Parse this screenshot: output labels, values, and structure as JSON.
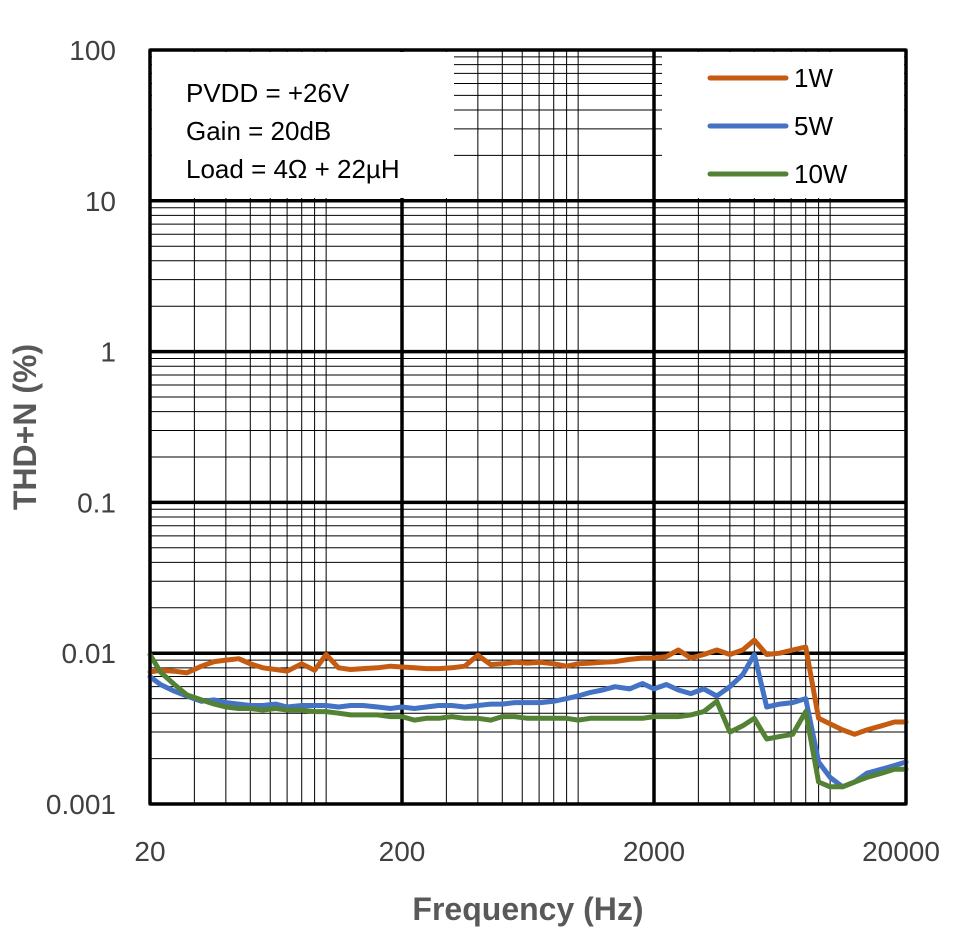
{
  "chart_data": {
    "type": "line",
    "xlabel": "Frequency (Hz)",
    "ylabel": "THD+N (%)",
    "x_scale": "log",
    "y_scale": "log",
    "xlim": [
      20,
      20000
    ],
    "ylim": [
      0.001,
      100
    ],
    "x_ticks": [
      "20",
      "200",
      "2000",
      "20000"
    ],
    "y_ticks": [
      "100",
      "10",
      "1",
      "0.1",
      "0.01",
      "0.001"
    ],
    "grid": true,
    "legend_position": "top-right",
    "annotations": [
      "PVDD = +26V",
      "Gain = 20dB",
      "Load = 4Ω + 22µH"
    ],
    "series": [
      {
        "name": "1W",
        "color": "#C55A11",
        "x": [
          20,
          22,
          25,
          28,
          32,
          36,
          40,
          45,
          50,
          56,
          63,
          70,
          80,
          90,
          100,
          112,
          125,
          140,
          160,
          180,
          200,
          224,
          250,
          280,
          315,
          355,
          400,
          450,
          500,
          560,
          630,
          710,
          800,
          900,
          1000,
          1120,
          1250,
          1400,
          1600,
          1800,
          2000,
          2240,
          2500,
          2800,
          3150,
          3550,
          4000,
          4500,
          5000,
          5600,
          6300,
          7100,
          8000,
          9000,
          10000,
          11200,
          12500,
          14000,
          16000,
          18000,
          20000
        ],
        "y": [
          0.0075,
          0.0077,
          0.0076,
          0.0074,
          0.0082,
          0.0088,
          0.009,
          0.0092,
          0.0085,
          0.008,
          0.0078,
          0.0076,
          0.0085,
          0.0077,
          0.0098,
          0.008,
          0.0078,
          0.0079,
          0.008,
          0.0082,
          0.0081,
          0.008,
          0.0079,
          0.0079,
          0.008,
          0.0082,
          0.0097,
          0.0084,
          0.0085,
          0.0087,
          0.0086,
          0.0087,
          0.0085,
          0.0082,
          0.0085,
          0.0086,
          0.0087,
          0.0088,
          0.0091,
          0.0093,
          0.0093,
          0.0095,
          0.0105,
          0.0093,
          0.0098,
          0.0105,
          0.0098,
          0.0105,
          0.0122,
          0.0098,
          0.01,
          0.0105,
          0.011,
          0.0037,
          0.0034,
          0.0031,
          0.0029,
          0.0031,
          0.0033,
          0.0035,
          0.0035
        ]
      },
      {
        "name": "5W",
        "color": "#4472C4",
        "x": [
          20,
          22,
          25,
          28,
          32,
          36,
          40,
          45,
          50,
          56,
          63,
          70,
          80,
          90,
          100,
          112,
          125,
          140,
          160,
          180,
          200,
          224,
          250,
          280,
          315,
          355,
          400,
          450,
          500,
          560,
          630,
          710,
          800,
          900,
          1000,
          1120,
          1250,
          1400,
          1600,
          1800,
          2000,
          2240,
          2500,
          2800,
          3150,
          3550,
          4000,
          4500,
          5000,
          5600,
          6300,
          7100,
          8000,
          9000,
          10000,
          11200,
          12500,
          14000,
          16000,
          18000,
          20000
        ],
        "y": [
          0.007,
          0.0062,
          0.0056,
          0.0052,
          0.0048,
          0.0049,
          0.0047,
          0.0046,
          0.0045,
          0.0045,
          0.0046,
          0.0044,
          0.0045,
          0.0045,
          0.0045,
          0.0044,
          0.0045,
          0.0045,
          0.0044,
          0.0043,
          0.0044,
          0.0043,
          0.0044,
          0.0045,
          0.0045,
          0.0044,
          0.0045,
          0.0046,
          0.0046,
          0.0047,
          0.0047,
          0.0047,
          0.0048,
          0.005,
          0.0052,
          0.0055,
          0.0057,
          0.006,
          0.0058,
          0.0063,
          0.0058,
          0.0062,
          0.0057,
          0.0054,
          0.0058,
          0.0052,
          0.006,
          0.0072,
          0.0098,
          0.0044,
          0.0046,
          0.0047,
          0.005,
          0.0019,
          0.0015,
          0.0013,
          0.0014,
          0.0016,
          0.0017,
          0.0018,
          0.0019
        ]
      },
      {
        "name": "10W",
        "color": "#548235",
        "x": [
          20,
          22,
          25,
          28,
          32,
          36,
          40,
          45,
          50,
          56,
          63,
          70,
          80,
          90,
          100,
          112,
          125,
          140,
          160,
          180,
          200,
          224,
          250,
          280,
          315,
          355,
          400,
          450,
          500,
          560,
          630,
          710,
          800,
          900,
          1000,
          1120,
          1250,
          1400,
          1600,
          1800,
          2000,
          2240,
          2500,
          2800,
          3150,
          3550,
          4000,
          4500,
          5000,
          5600,
          6300,
          7100,
          8000,
          9000,
          10000,
          11200,
          12500,
          14000,
          16000,
          18000,
          20000
        ],
        "y": [
          0.0098,
          0.0075,
          0.0062,
          0.0053,
          0.0049,
          0.0046,
          0.0044,
          0.0043,
          0.0043,
          0.0042,
          0.0043,
          0.0042,
          0.0042,
          0.0041,
          0.0041,
          0.004,
          0.0039,
          0.0039,
          0.0039,
          0.0038,
          0.0038,
          0.0036,
          0.0037,
          0.0037,
          0.0038,
          0.0037,
          0.0037,
          0.0036,
          0.0038,
          0.0038,
          0.0037,
          0.0037,
          0.0037,
          0.0037,
          0.0036,
          0.0037,
          0.0037,
          0.0037,
          0.0037,
          0.0037,
          0.0038,
          0.0038,
          0.0038,
          0.0039,
          0.0041,
          0.0048,
          0.003,
          0.0033,
          0.0037,
          0.0027,
          0.0028,
          0.0029,
          0.0041,
          0.0014,
          0.0013,
          0.0013,
          0.0014,
          0.0015,
          0.0016,
          0.0017,
          0.0017
        ]
      }
    ]
  }
}
